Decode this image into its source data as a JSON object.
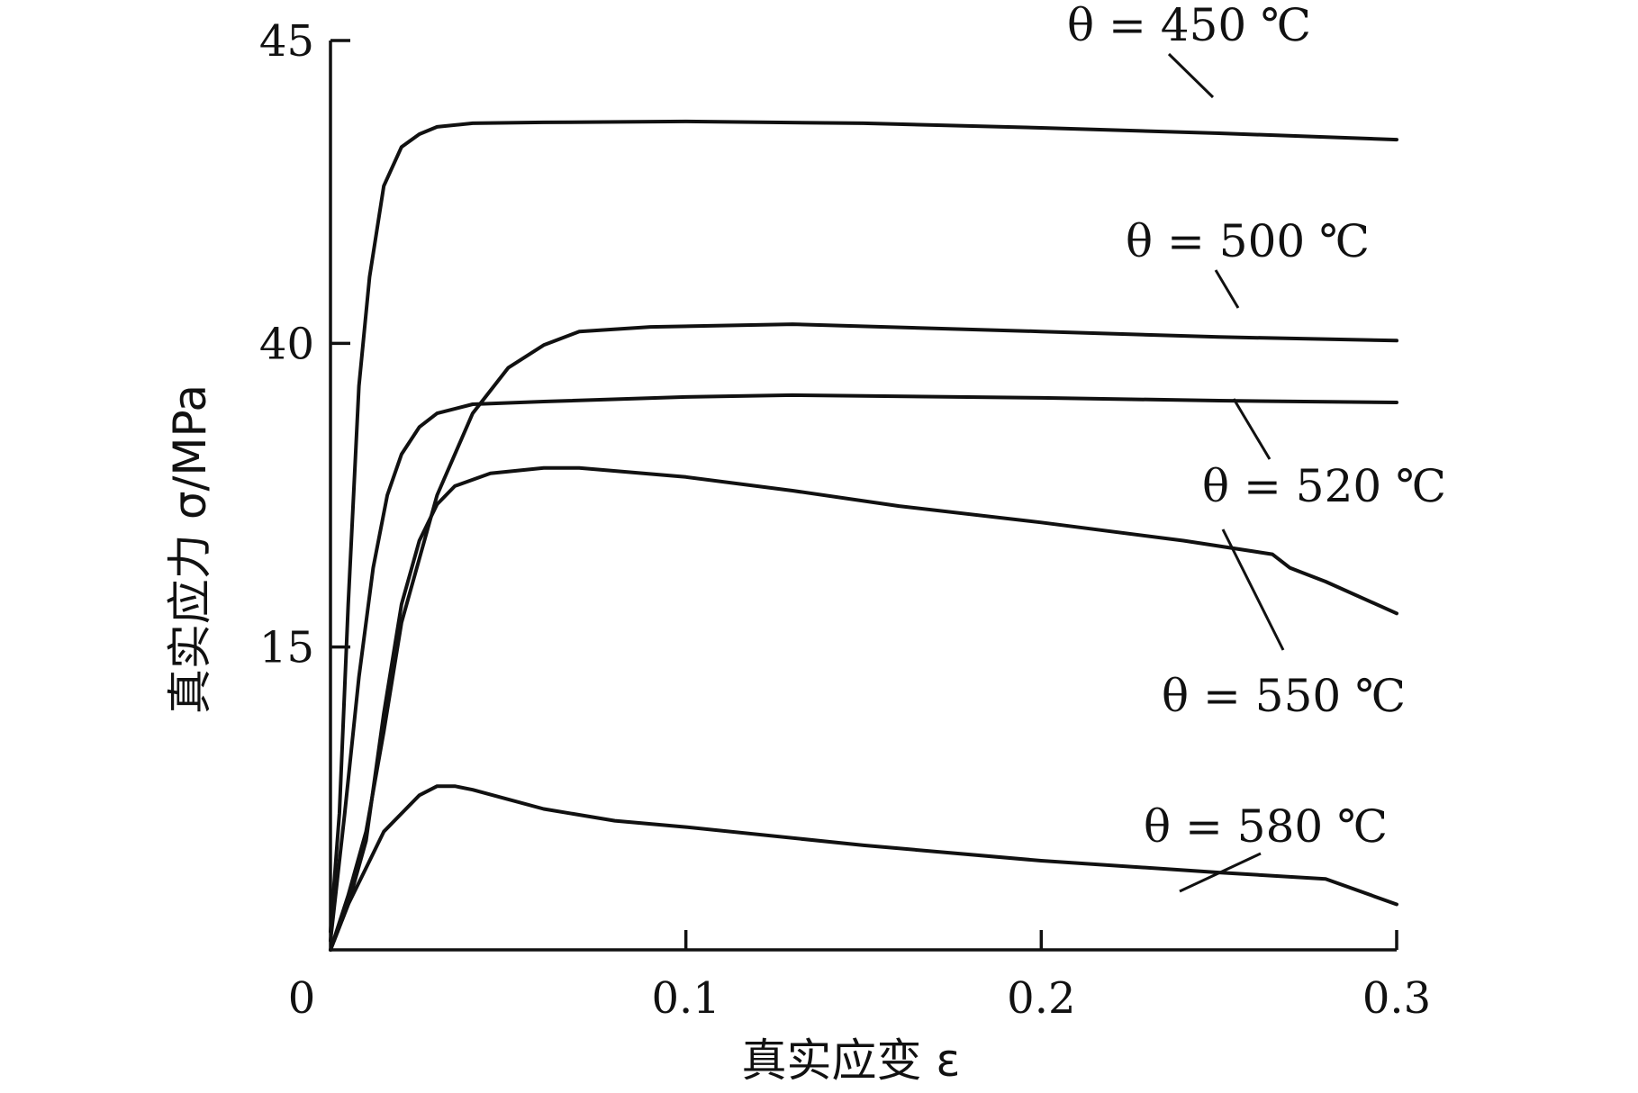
{
  "chart_data": {
    "type": "line",
    "xlabel": "真实应变 ε",
    "ylabel": "真实应力 σ/MPa",
    "xlim": [
      0,
      0.3
    ],
    "x_ticks": [
      "0",
      "0.1",
      "0.2",
      "0.3"
    ],
    "x_tick_values": [
      0,
      0.1,
      0.2,
      0.3
    ],
    "y_ticks": [
      "15",
      "40",
      "45"
    ],
    "y_tick_values": [
      15,
      40,
      45
    ],
    "y_axis_note": "broken axis; tick labels 15, 40, 45 equally spaced",
    "line_color": "#111111",
    "series": [
      {
        "name": "θ = 450 ℃",
        "points": [
          [
            0.0,
            0.02
          ],
          [
            0.0025,
            0.15
          ],
          [
            0.005,
            0.38
          ],
          [
            0.008,
            0.62
          ],
          [
            0.011,
            0.74
          ],
          [
            0.015,
            0.84
          ],
          [
            0.02,
            0.883
          ],
          [
            0.025,
            0.897
          ],
          [
            0.03,
            0.905
          ],
          [
            0.04,
            0.909
          ],
          [
            0.06,
            0.91
          ],
          [
            0.1,
            0.911
          ],
          [
            0.15,
            0.909
          ],
          [
            0.2,
            0.904
          ],
          [
            0.25,
            0.898
          ],
          [
            0.3,
            0.891
          ]
        ]
      },
      {
        "name": "θ = 500 ℃",
        "points": [
          [
            0.0,
            0.0
          ],
          [
            0.005,
            0.06
          ],
          [
            0.01,
            0.13
          ],
          [
            0.015,
            0.24
          ],
          [
            0.02,
            0.36
          ],
          [
            0.03,
            0.5
          ],
          [
            0.04,
            0.59
          ],
          [
            0.05,
            0.64
          ],
          [
            0.06,
            0.665
          ],
          [
            0.07,
            0.68
          ],
          [
            0.09,
            0.685
          ],
          [
            0.13,
            0.688
          ],
          [
            0.2,
            0.68
          ],
          [
            0.25,
            0.674
          ],
          [
            0.3,
            0.67
          ]
        ]
      },
      {
        "name": "θ = 520 ℃",
        "points": [
          [
            0.0,
            0.01
          ],
          [
            0.004,
            0.15
          ],
          [
            0.008,
            0.3
          ],
          [
            0.012,
            0.42
          ],
          [
            0.016,
            0.5
          ],
          [
            0.02,
            0.545
          ],
          [
            0.025,
            0.575
          ],
          [
            0.03,
            0.59
          ],
          [
            0.04,
            0.6
          ],
          [
            0.06,
            0.603
          ],
          [
            0.1,
            0.608
          ],
          [
            0.13,
            0.61
          ],
          [
            0.2,
            0.607
          ],
          [
            0.25,
            0.604
          ],
          [
            0.3,
            0.602
          ]
        ]
      },
      {
        "name": "θ = 550 ℃",
        "points": [
          [
            0.0,
            0.0
          ],
          [
            0.005,
            0.05
          ],
          [
            0.01,
            0.12
          ],
          [
            0.015,
            0.26
          ],
          [
            0.02,
            0.38
          ],
          [
            0.025,
            0.45
          ],
          [
            0.03,
            0.49
          ],
          [
            0.035,
            0.51
          ],
          [
            0.045,
            0.524
          ],
          [
            0.06,
            0.53
          ],
          [
            0.07,
            0.53
          ],
          [
            0.1,
            0.52
          ],
          [
            0.13,
            0.505
          ],
          [
            0.16,
            0.488
          ],
          [
            0.2,
            0.47
          ],
          [
            0.24,
            0.45
          ],
          [
            0.265,
            0.435
          ],
          [
            0.27,
            0.42
          ],
          [
            0.28,
            0.405
          ],
          [
            0.3,
            0.37
          ]
        ]
      },
      {
        "name": "θ = 580 ℃",
        "points": [
          [
            0.0,
            0.0
          ],
          [
            0.005,
            0.05
          ],
          [
            0.01,
            0.09
          ],
          [
            0.015,
            0.13
          ],
          [
            0.02,
            0.15
          ],
          [
            0.025,
            0.17
          ],
          [
            0.03,
            0.18
          ],
          [
            0.035,
            0.18
          ],
          [
            0.04,
            0.176
          ],
          [
            0.06,
            0.155
          ],
          [
            0.08,
            0.142
          ],
          [
            0.1,
            0.135
          ],
          [
            0.15,
            0.115
          ],
          [
            0.2,
            0.098
          ],
          [
            0.25,
            0.085
          ],
          [
            0.28,
            0.078
          ],
          [
            0.3,
            0.05
          ]
        ]
      }
    ],
    "labels": [
      {
        "text": "θ = 450 ℃"
      },
      {
        "text": "θ = 500 ℃"
      },
      {
        "text": "θ = 520 ℃"
      },
      {
        "text": "θ = 550 ℃"
      },
      {
        "text": "θ = 580 ℃"
      }
    ]
  }
}
